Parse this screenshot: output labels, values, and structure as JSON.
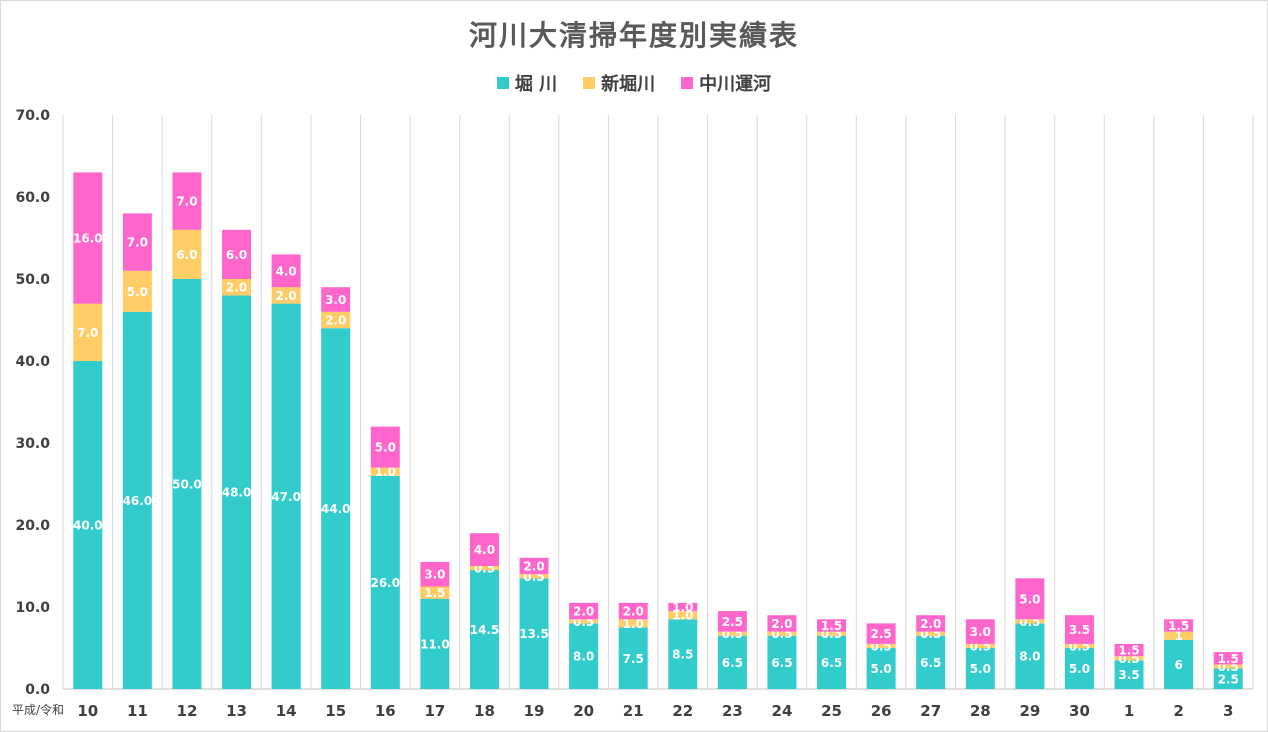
{
  "chart_data": {
    "type": "bar",
    "stacked": true,
    "title": "河川大清掃年度別実績表",
    "x_prefix": "平成/令和",
    "categories": [
      "10",
      "11",
      "12",
      "13",
      "14",
      "15",
      "16",
      "17",
      "18",
      "19",
      "20",
      "21",
      "22",
      "23",
      "24",
      "25",
      "26",
      "27",
      "28",
      "29",
      "30",
      "1",
      "2",
      "3"
    ],
    "series": [
      {
        "name": "堀 川",
        "color": "#33cccc",
        "values": [
          40.0,
          46.0,
          50.0,
          48.0,
          47.0,
          44.0,
          26.0,
          11.0,
          14.5,
          13.5,
          8.0,
          7.5,
          8.5,
          6.5,
          6.5,
          6.5,
          5.0,
          6.5,
          5.0,
          8.0,
          5.0,
          3.5,
          6,
          2.5
        ],
        "labels": [
          "40.0",
          "46.0",
          "50.0",
          "48.0",
          "47.0",
          "44.0",
          "26.0",
          "11.0",
          "14.5",
          "13.5",
          "8.0",
          "7.5",
          "8.5",
          "6.5",
          "6.5",
          "6.5",
          "5.0",
          "6.5",
          "5.0",
          "8.0",
          "5.0",
          "3.5",
          "6",
          "2.5"
        ]
      },
      {
        "name": "新堀川",
        "color": "#ffcc66",
        "values": [
          7.0,
          5.0,
          6.0,
          2.0,
          2.0,
          2.0,
          1.0,
          1.5,
          0.5,
          0.5,
          0.5,
          1.0,
          1.0,
          0.5,
          0.5,
          0.5,
          0.5,
          0.5,
          0.5,
          0.5,
          0.5,
          0.5,
          1,
          0.5
        ],
        "labels": [
          "7.0",
          "5.0",
          "6.0",
          "2.0",
          "2.0",
          "2.0",
          "1.0",
          "1.5",
          "0.5",
          "0.5",
          "0.5",
          "1.0",
          "1.0",
          "0.5",
          "0.5",
          "0.5",
          "0.5",
          "0.5",
          "0.5",
          "0.5",
          "0.5",
          "0.5",
          "1",
          "0.5"
        ]
      },
      {
        "name": "中川運河",
        "color": "#ff66cc",
        "values": [
          16.0,
          7.0,
          7.0,
          6.0,
          4.0,
          3.0,
          5.0,
          3.0,
          4.0,
          2.0,
          2.0,
          2.0,
          1.0,
          2.5,
          2.0,
          1.5,
          2.5,
          2.0,
          3.0,
          5.0,
          3.5,
          1.5,
          1.5,
          1.5
        ],
        "labels": [
          "16.0",
          "7.0",
          "7.0",
          "6.0",
          "4.0",
          "3.0",
          "5.0",
          "3.0",
          "4.0",
          "2.0",
          "2.0",
          "2.0",
          "1.0",
          "2.5",
          "2.0",
          "1.5",
          "2.5",
          "2.0",
          "3.0",
          "5.0",
          "3.5",
          "1.5",
          "1.5",
          "1.5"
        ]
      }
    ],
    "ylim": [
      0,
      70
    ],
    "yticks": [
      "0.0",
      "10.0",
      "20.0",
      "30.0",
      "40.0",
      "50.0",
      "60.0",
      "70.0"
    ],
    "grid": "vertical",
    "legend": "top-center"
  }
}
